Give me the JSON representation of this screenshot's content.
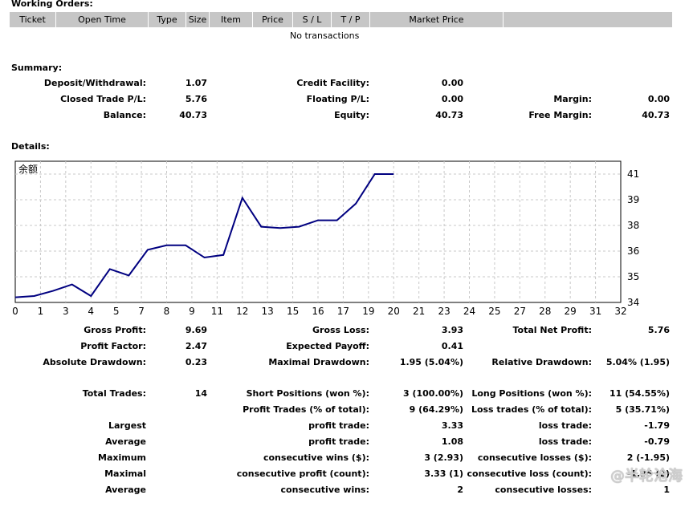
{
  "working_orders": {
    "title": "Working Orders:",
    "columns": [
      "Ticket",
      "Open Time",
      "Type",
      "Size",
      "Item",
      "Price",
      "S / L",
      "T / P",
      "Market Price",
      ""
    ],
    "empty_text": "No transactions"
  },
  "summary": {
    "title": "Summary:",
    "deposit_label": "Deposit/Withdrawal:",
    "deposit_value": "1.07",
    "credit_label": "Credit Facility:",
    "credit_value": "0.00",
    "closed_label": "Closed Trade P/L:",
    "closed_value": "5.76",
    "floating_label": "Floating P/L:",
    "floating_value": "0.00",
    "margin_label": "Margin:",
    "margin_value": "0.00",
    "balance_label": "Balance:",
    "balance_value": "40.73",
    "equity_label": "Equity:",
    "equity_value": "40.73",
    "free_margin_label": "Free Margin:",
    "free_margin_value": "40.73"
  },
  "details": {
    "title": "Details:",
    "gross_profit_label": "Gross Profit:",
    "gross_profit_value": "9.69",
    "gross_loss_label": "Gross Loss:",
    "gross_loss_value": "3.93",
    "total_net_label": "Total Net Profit:",
    "total_net_value": "5.76",
    "profit_factor_label": "Profit Factor:",
    "profit_factor_value": "2.47",
    "expected_payoff_label": "Expected Payoff:",
    "expected_payoff_value": "0.41",
    "abs_dd_label": "Absolute Drawdown:",
    "abs_dd_value": "0.23",
    "max_dd_label": "Maximal Drawdown:",
    "max_dd_value": "1.95 (5.04%)",
    "rel_dd_label": "Relative Drawdown:",
    "rel_dd_value": "5.04% (1.95)",
    "total_trades_label": "Total Trades:",
    "total_trades_value": "14",
    "short_label": "Short Positions (won %):",
    "short_value": "3 (100.00%)",
    "long_label": "Long Positions (won %):",
    "long_value": "11 (54.55%)",
    "profit_trades_label": "Profit Trades (% of total):",
    "profit_trades_value": "9 (64.29%)",
    "loss_trades_label": "Loss trades (% of total):",
    "loss_trades_value": "5 (35.71%)",
    "largest_label": "Largest",
    "largest_profit_label": "profit trade:",
    "largest_profit_value": "3.33",
    "largest_loss_label": "loss trade:",
    "largest_loss_value": "-1.79",
    "average_label": "Average",
    "average_profit_label": "profit trade:",
    "average_profit_value": "1.08",
    "average_loss_label": "loss trade:",
    "average_loss_value": "-0.79",
    "maximum_label": "Maximum",
    "max_cons_wins_label": "consecutive wins ($):",
    "max_cons_wins_value": "3 (2.93)",
    "max_cons_losses_label": "consecutive losses ($):",
    "max_cons_losses_value": "2 (-1.95)",
    "maximal_label": "Maximal",
    "maximal_profit_label": "consecutive profit (count):",
    "maximal_profit_value": "3.33 (1)",
    "maximal_loss_label": "consecutive loss (count):",
    "maximal_loss_value": "-1.95 (2)",
    "average2_label": "Average",
    "avg_cons_wins_label": "consecutive wins:",
    "avg_cons_wins_value": "2",
    "avg_cons_losses_label": "consecutive losses:",
    "avg_cons_losses_value": "1"
  },
  "watermark": "@半轮沧海",
  "chart_data": {
    "type": "line",
    "title": "余额",
    "x_ticks": [
      0,
      1,
      3,
      4,
      5,
      7,
      8,
      9,
      11,
      12,
      13,
      15,
      16,
      17,
      19,
      20,
      21,
      23,
      24,
      25,
      27,
      28,
      29,
      31,
      32
    ],
    "y_ticks": [
      34,
      35,
      36,
      38,
      39,
      41
    ],
    "xlim": [
      0,
      32
    ],
    "ylim": [
      34,
      41
    ],
    "grid": true,
    "line_color": "#000080",
    "series": [
      {
        "x": [
          0,
          1,
          2,
          3,
          4,
          5,
          6,
          7,
          8,
          9,
          10,
          11,
          12,
          13,
          14,
          15,
          16,
          17,
          18,
          19,
          20
        ],
        "y": [
          34.2,
          34.25,
          34.45,
          34.7,
          34.25,
          35.3,
          35.05,
          36.1,
          36.45,
          36.45,
          35.75,
          35.85,
          39.15,
          37.9,
          37.8,
          37.9,
          38.2,
          38.2,
          38.85,
          41.0,
          41.0
        ]
      }
    ]
  }
}
